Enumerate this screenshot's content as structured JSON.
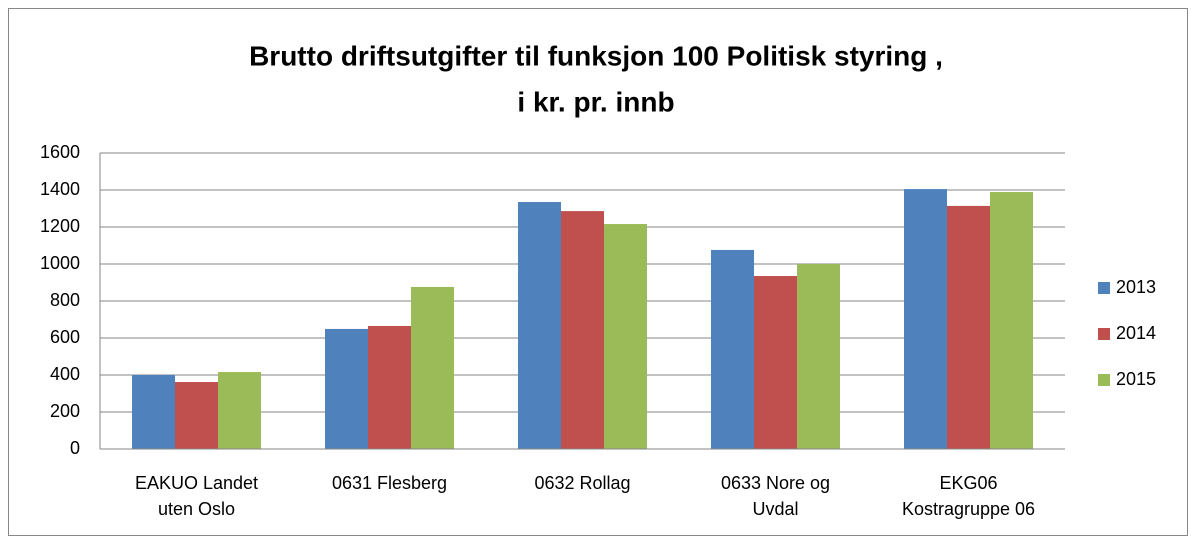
{
  "chart_data": {
    "type": "bar",
    "title": [
      "Brutto driftsutgifter til funksjon 100 Politisk styring ,",
      "i kr. pr. innb"
    ],
    "categories": [
      "EAKUO Landet uten Oslo",
      "0631 Flesberg",
      "0632 Rollag",
      "0633 Nore og Uvdal",
      "EKG06 Kostragruppe 06"
    ],
    "series": [
      {
        "name": "2013",
        "color": "#4f81bd",
        "values": [
          400,
          649,
          1335,
          1076,
          1405
        ]
      },
      {
        "name": "2014",
        "color": "#c0504d",
        "values": [
          362,
          665,
          1286,
          935,
          1314
        ]
      },
      {
        "name": "2015",
        "color": "#9bbb59",
        "values": [
          416,
          876,
          1216,
          1000,
          1389
        ]
      }
    ],
    "ylim": [
      0,
      1600
    ],
    "yticks": [
      0,
      200,
      400,
      600,
      800,
      1000,
      1200,
      1400,
      1600
    ],
    "grid": true,
    "legend": "right"
  }
}
